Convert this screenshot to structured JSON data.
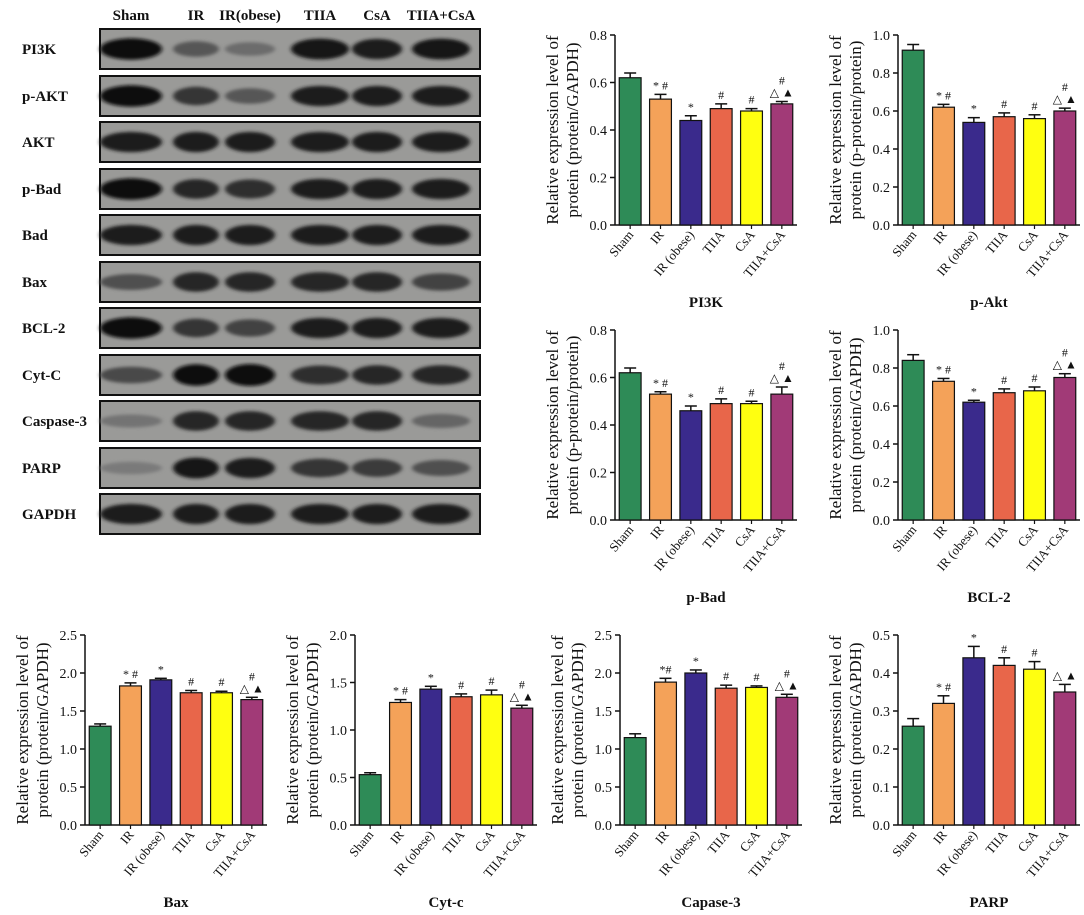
{
  "blot": {
    "lanes": [
      "Sham",
      "IR",
      "IR(obese)",
      "TIIA",
      "CsA",
      "TIIA+CsA"
    ],
    "rows": [
      {
        "label": "PI3K",
        "intensity": [
          0.95,
          0.45,
          0.3,
          0.9,
          0.85,
          0.9
        ]
      },
      {
        "label": "p-AKT",
        "intensity": [
          0.95,
          0.7,
          0.45,
          0.85,
          0.85,
          0.85
        ]
      },
      {
        "label": "AKT",
        "intensity": [
          0.85,
          0.85,
          0.85,
          0.85,
          0.85,
          0.85
        ]
      },
      {
        "label": "p-Bad",
        "intensity": [
          0.95,
          0.8,
          0.75,
          0.85,
          0.85,
          0.85
        ]
      },
      {
        "label": "Bad",
        "intensity": [
          0.85,
          0.85,
          0.85,
          0.85,
          0.85,
          0.85
        ]
      },
      {
        "label": "Bax",
        "intensity": [
          0.5,
          0.8,
          0.8,
          0.8,
          0.8,
          0.6
        ]
      },
      {
        "label": "BCL-2",
        "intensity": [
          0.95,
          0.7,
          0.6,
          0.85,
          0.85,
          0.85
        ]
      },
      {
        "label": "Cyt-C",
        "intensity": [
          0.55,
          0.95,
          1.0,
          0.75,
          0.8,
          0.8
        ]
      },
      {
        "label": "Caspase-3",
        "intensity": [
          0.25,
          0.8,
          0.8,
          0.8,
          0.8,
          0.35
        ]
      },
      {
        "label": "PARP",
        "intensity": [
          0.2,
          0.9,
          0.85,
          0.7,
          0.65,
          0.5
        ]
      },
      {
        "label": "GAPDH",
        "intensity": [
          0.85,
          0.85,
          0.85,
          0.85,
          0.85,
          0.85
        ]
      }
    ]
  },
  "chart_data": [
    {
      "type": "bar",
      "title": "PI3K",
      "ylabel": [
        "Relative expression level of",
        "protein (protein/GAPDH)"
      ],
      "categories": [
        "Sham",
        "IR",
        "IR (obese)",
        "TIIA",
        "CsA",
        "TIIA+CsA"
      ],
      "values": [
        0.62,
        0.53,
        0.44,
        0.49,
        0.48,
        0.51
      ],
      "errors": [
        0.02,
        0.02,
        0.02,
        0.02,
        0.01,
        0.01
      ],
      "ylim": [
        0.0,
        0.8
      ],
      "ticks": [
        "0.0",
        "0.2",
        "0.4",
        "0.6",
        "0.8"
      ],
      "annotations": [
        [],
        [
          "* #"
        ],
        [
          "*"
        ],
        [
          "#"
        ],
        [
          "#"
        ],
        [
          "#",
          "△ ▲"
        ]
      ]
    },
    {
      "type": "bar",
      "title": "p-Akt",
      "ylabel": [
        "Relative expression level of",
        "protein (p-protein/protein)"
      ],
      "categories": [
        "Sham",
        "IR",
        "IR (obese)",
        "TIIA",
        "CsA",
        "TIIA+CsA"
      ],
      "values": [
        0.92,
        0.62,
        0.54,
        0.57,
        0.56,
        0.6
      ],
      "errors": [
        0.03,
        0.015,
        0.025,
        0.02,
        0.02,
        0.015
      ],
      "ylim": [
        0.0,
        1.0
      ],
      "ticks": [
        "0.0",
        "0.2",
        "0.4",
        "0.6",
        "0.8",
        "1.0"
      ],
      "annotations": [
        [],
        [
          "* #"
        ],
        [
          "*"
        ],
        [
          "#"
        ],
        [
          "#"
        ],
        [
          "#",
          "△ ▲"
        ]
      ]
    },
    {
      "type": "bar",
      "title": "p-Bad",
      "ylabel": [
        "Relative expression level of",
        "protein (p-protein/protein)"
      ],
      "categories": [
        "Sham",
        "IR",
        "IR (obese)",
        "TIIA",
        "CsA",
        "TIIA+CsA"
      ],
      "values": [
        0.62,
        0.53,
        0.46,
        0.49,
        0.49,
        0.53
      ],
      "errors": [
        0.02,
        0.01,
        0.02,
        0.02,
        0.01,
        0.03
      ],
      "ylim": [
        0.0,
        0.8
      ],
      "ticks": [
        "0.0",
        "0.2",
        "0.4",
        "0.6",
        "0.8"
      ],
      "annotations": [
        [],
        [
          "* #"
        ],
        [
          "*"
        ],
        [
          "#"
        ],
        [
          "#"
        ],
        [
          "#",
          "△ ▲"
        ]
      ]
    },
    {
      "type": "bar",
      "title": "BCL-2",
      "ylabel": [
        "Relative expression level of",
        "protein (protein/GAPDH)"
      ],
      "categories": [
        "Sham",
        "IR",
        "IR (obese)",
        "TIIA",
        "CsA",
        "TIIA+CsA"
      ],
      "values": [
        0.84,
        0.73,
        0.62,
        0.67,
        0.68,
        0.75
      ],
      "errors": [
        0.03,
        0.015,
        0.01,
        0.02,
        0.02,
        0.02
      ],
      "ylim": [
        0.0,
        1.0
      ],
      "ticks": [
        "0.0",
        "0.2",
        "0.4",
        "0.6",
        "0.8",
        "1.0"
      ],
      "annotations": [
        [],
        [
          "* #"
        ],
        [
          "*"
        ],
        [
          "#"
        ],
        [
          "#"
        ],
        [
          "#",
          "△ ▲"
        ]
      ]
    },
    {
      "type": "bar",
      "title": "Bax",
      "ylabel": [
        "Relative expression level of",
        "protein (protein/GAPDH)"
      ],
      "categories": [
        "Sham",
        "IR",
        "IR (obese)",
        "TIIA",
        "CsA",
        "TIIA+CsA"
      ],
      "values": [
        1.3,
        1.83,
        1.91,
        1.74,
        1.74,
        1.65
      ],
      "errors": [
        0.03,
        0.04,
        0.02,
        0.03,
        0.02,
        0.03
      ],
      "ylim": [
        0.0,
        2.5
      ],
      "ticks": [
        "0.0",
        "0.5",
        "1.0",
        "1.5",
        "2.0",
        "2.5"
      ],
      "annotations": [
        [],
        [
          "* #"
        ],
        [
          "*"
        ],
        [
          "#"
        ],
        [
          "#"
        ],
        [
          "#",
          "△ ▲"
        ]
      ]
    },
    {
      "type": "bar",
      "title": "Cyt-c",
      "ylabel": [
        "Relative expression level of",
        "protein (protein/GAPDH)"
      ],
      "categories": [
        "Sham",
        "IR",
        "IR (obese)",
        "TIIA",
        "CsA",
        "TIIA+CsA"
      ],
      "values": [
        0.53,
        1.29,
        1.43,
        1.35,
        1.37,
        1.23
      ],
      "errors": [
        0.02,
        0.03,
        0.03,
        0.03,
        0.05,
        0.03
      ],
      "ylim": [
        0.0,
        2.0
      ],
      "ticks": [
        "0.0",
        "0.5",
        "1.0",
        "1.5",
        "2.0"
      ],
      "annotations": [
        [],
        [
          "* #"
        ],
        [
          "*"
        ],
        [
          "#"
        ],
        [
          "#"
        ],
        [
          "#",
          "△ ▲"
        ]
      ]
    },
    {
      "type": "bar",
      "title": "Capase-3",
      "ylabel": [
        "Relative expression level of",
        "protein (protein/GAPDH)"
      ],
      "categories": [
        "Sham",
        "IR",
        "IR (obese)",
        "TIIA",
        "CsA",
        "TIIA+CsA"
      ],
      "values": [
        1.15,
        1.88,
        2.0,
        1.8,
        1.81,
        1.68
      ],
      "errors": [
        0.05,
        0.05,
        0.04,
        0.04,
        0.02,
        0.04
      ],
      "ylim": [
        0.0,
        2.5
      ],
      "ticks": [
        "0.0",
        "0.5",
        "1.0",
        "1.5",
        "2.0",
        "2.5"
      ],
      "annotations": [
        [],
        [
          "*#"
        ],
        [
          "*"
        ],
        [
          "#"
        ],
        [
          "#"
        ],
        [
          "#",
          "△ ▲"
        ]
      ]
    },
    {
      "type": "bar",
      "title": "PARP",
      "ylabel": [
        "Relative expression level of",
        "protein (protein/GAPDH)"
      ],
      "categories": [
        "Sham",
        "IR",
        "IR (obese)",
        "TIIA",
        "CsA",
        "TIIA+CsA"
      ],
      "values": [
        0.26,
        0.32,
        0.44,
        0.42,
        0.41,
        0.35
      ],
      "errors": [
        0.02,
        0.02,
        0.03,
        0.02,
        0.02,
        0.02
      ],
      "ylim": [
        0.0,
        0.5
      ],
      "ticks": [
        "0.0",
        "0.1",
        "0.2",
        "0.3",
        "0.4",
        "0.5"
      ],
      "annotations": [
        [],
        [
          "* #"
        ],
        [
          "*"
        ],
        [
          "#"
        ],
        [
          "#"
        ],
        [
          "△ ▲"
        ]
      ]
    }
  ],
  "bar_colors": [
    "#2e8b57",
    "#f4a259",
    "#3a2a8c",
    "#e8664a",
    "#ffff10",
    "#a13a77"
  ]
}
